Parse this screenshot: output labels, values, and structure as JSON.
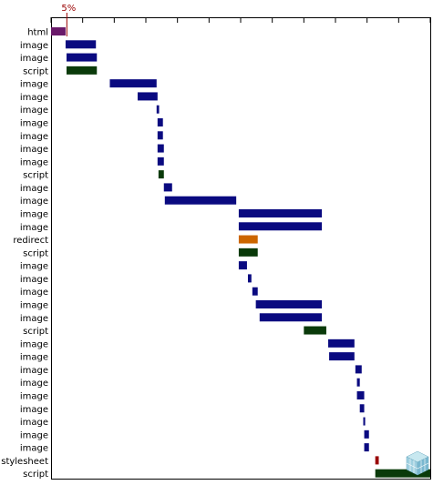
{
  "chart_data": {
    "type": "waterfall",
    "title": "",
    "xlabel": "",
    "ylabel": "",
    "marker_label": "5%",
    "marker_value": 5,
    "xlim": [
      0,
      120
    ],
    "colors": {
      "html": "#6a1a6a",
      "image": "#0a0a80",
      "script": "#0a3a0a",
      "redirect": "#cc6600",
      "stylesheet": "#990000",
      "marker": "#990000",
      "tick": "#000000"
    },
    "rows": [
      {
        "label": "html",
        "type": "html",
        "start": 0.0,
        "end": 4.6
      },
      {
        "label": "image",
        "type": "image",
        "start": 4.6,
        "end": 14.2
      },
      {
        "label": "image",
        "type": "image",
        "start": 4.9,
        "end": 14.5
      },
      {
        "label": "script",
        "type": "script",
        "start": 4.9,
        "end": 14.5
      },
      {
        "label": "image",
        "type": "image",
        "start": 18.6,
        "end": 33.4
      },
      {
        "label": "image",
        "type": "image",
        "start": 27.4,
        "end": 33.7
      },
      {
        "label": "image",
        "type": "image",
        "start": 33.4,
        "end": 34.2
      },
      {
        "label": "image",
        "type": "image",
        "start": 33.7,
        "end": 35.4
      },
      {
        "label": "image",
        "type": "image",
        "start": 33.7,
        "end": 35.4
      },
      {
        "label": "image",
        "type": "image",
        "start": 33.7,
        "end": 35.7
      },
      {
        "label": "image",
        "type": "image",
        "start": 33.7,
        "end": 35.7
      },
      {
        "label": "script",
        "type": "script",
        "start": 34.0,
        "end": 35.7
      },
      {
        "label": "image",
        "type": "image",
        "start": 35.7,
        "end": 38.3
      },
      {
        "label": "image",
        "type": "image",
        "start": 36.0,
        "end": 58.6
      },
      {
        "label": "image",
        "type": "image",
        "start": 59.4,
        "end": 85.7
      },
      {
        "label": "image",
        "type": "image",
        "start": 59.4,
        "end": 85.7
      },
      {
        "label": "redirect",
        "type": "redirect",
        "start": 59.4,
        "end": 65.4
      },
      {
        "label": "script",
        "type": "script",
        "start": 59.4,
        "end": 65.4
      },
      {
        "label": "image",
        "type": "image",
        "start": 59.4,
        "end": 62.0
      },
      {
        "label": "image",
        "type": "image",
        "start": 62.3,
        "end": 63.4
      },
      {
        "label": "image",
        "type": "image",
        "start": 63.7,
        "end": 65.4
      },
      {
        "label": "image",
        "type": "image",
        "start": 64.8,
        "end": 85.7
      },
      {
        "label": "image",
        "type": "image",
        "start": 66.0,
        "end": 85.7
      },
      {
        "label": "script",
        "type": "script",
        "start": 80.0,
        "end": 87.1
      },
      {
        "label": "image",
        "type": "image",
        "start": 87.7,
        "end": 96.0
      },
      {
        "label": "image",
        "type": "image",
        "start": 88.0,
        "end": 96.0
      },
      {
        "label": "image",
        "type": "image",
        "start": 96.3,
        "end": 98.3
      },
      {
        "label": "image",
        "type": "image",
        "start": 96.8,
        "end": 97.7
      },
      {
        "label": "image",
        "type": "image",
        "start": 96.8,
        "end": 99.1
      },
      {
        "label": "image",
        "type": "image",
        "start": 97.7,
        "end": 99.1
      },
      {
        "label": "image",
        "type": "image",
        "start": 98.8,
        "end": 99.4
      },
      {
        "label": "image",
        "type": "image",
        "start": 99.1,
        "end": 100.6
      },
      {
        "label": "image",
        "type": "image",
        "start": 99.1,
        "end": 100.6
      },
      {
        "label": "stylesheet",
        "type": "stylesheet",
        "start": 102.6,
        "end": 103.7
      },
      {
        "label": "script",
        "type": "script",
        "start": 102.6,
        "end": 120.0
      }
    ]
  }
}
